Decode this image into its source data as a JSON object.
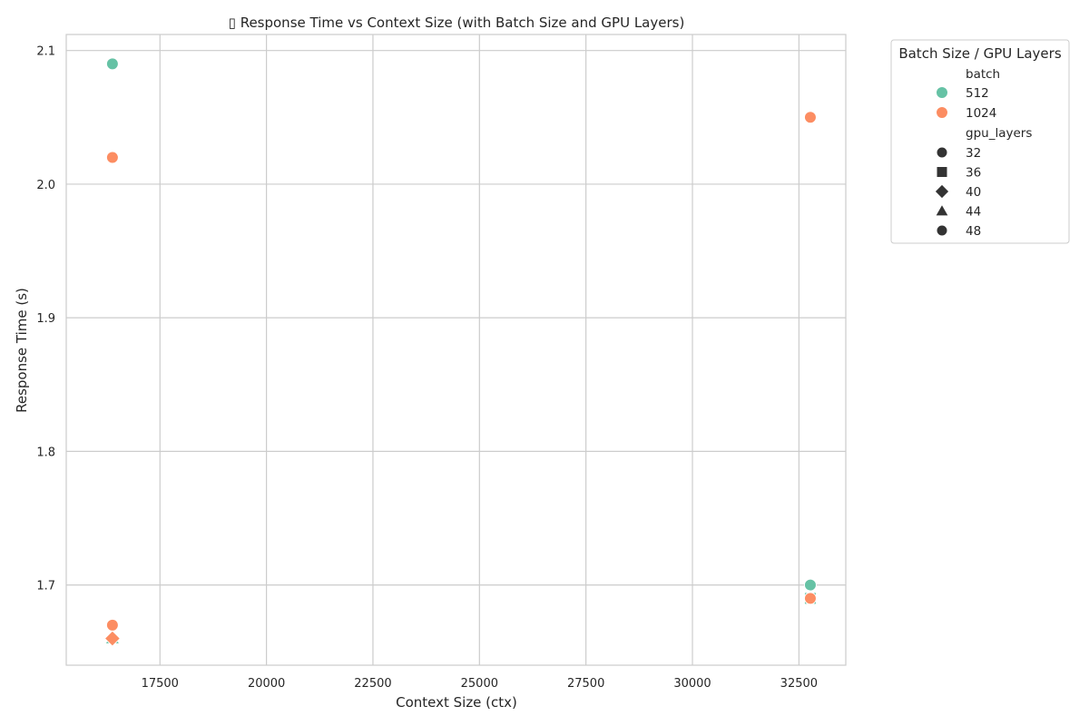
{
  "chart_data": {
    "type": "scatter",
    "title": "▯ Response Time vs Context Size (with Batch Size and GPU Layers)",
    "xlabel": "Context Size (ctx)",
    "ylabel": "Response Time (s)",
    "xlim": [
      15300,
      33600
    ],
    "ylim": [
      1.64,
      2.112
    ],
    "xticks": [
      17500,
      20000,
      22500,
      25000,
      27500,
      30000,
      32500
    ],
    "yticks": [
      1.7,
      1.8,
      1.9,
      2.0,
      2.1
    ],
    "grid": true,
    "legend": {
      "placement": "outside top-right",
      "title": "Batch Size / GPU Layers",
      "hue_title": "batch",
      "hue_items": [
        {
          "label": "512",
          "color": "#66c2a5"
        },
        {
          "label": "1024",
          "color": "#fc8d62"
        }
      ],
      "style_title": "gpu_layers",
      "style_items": [
        {
          "label": "32",
          "marker": "circle"
        },
        {
          "label": "36",
          "marker": "square"
        },
        {
          "label": "40",
          "marker": "diamond"
        },
        {
          "label": "44",
          "marker": "triangle"
        },
        {
          "label": "48",
          "marker": "circle"
        }
      ]
    },
    "series": [
      {
        "batch": "512",
        "color": "#66c2a5",
        "points": [
          {
            "x": 16384,
            "y": 2.09,
            "marker": "circle"
          },
          {
            "x": 16384,
            "y": 1.66,
            "marker": "triangle"
          },
          {
            "x": 16384,
            "y": 1.67,
            "marker": "circle"
          },
          {
            "x": 32768,
            "y": 1.7,
            "marker": "circle"
          },
          {
            "x": 32768,
            "y": 1.69,
            "marker": "square"
          }
        ]
      },
      {
        "batch": "1024",
        "color": "#fc8d62",
        "points": [
          {
            "x": 16384,
            "y": 2.02,
            "marker": "circle"
          },
          {
            "x": 16384,
            "y": 1.66,
            "marker": "diamond"
          },
          {
            "x": 16384,
            "y": 1.67,
            "marker": "circle"
          },
          {
            "x": 32768,
            "y": 2.05,
            "marker": "circle"
          },
          {
            "x": 32768,
            "y": 1.69,
            "marker": "circle"
          }
        ]
      }
    ]
  }
}
